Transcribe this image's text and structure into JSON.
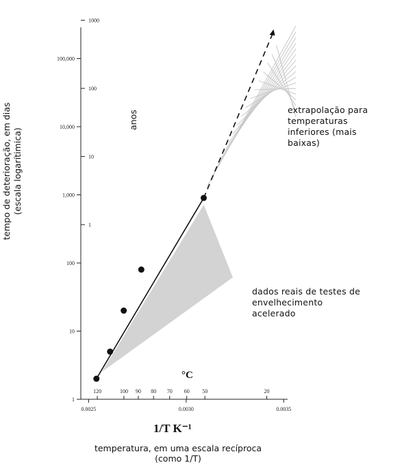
{
  "chart_data": {
    "type": "line",
    "title": "",
    "ylabel_lines": [
      "tempo de deterioração, em dias",
      "(escala  logarítimica)"
    ],
    "xlabel_lines": [
      "temperatura, em uma escala recíproca",
      "(como 1/T)"
    ],
    "xaxis_title": "1/T K⁻¹",
    "y_scale": "log",
    "ylim": [
      1,
      300000
    ],
    "xlim": [
      0.00246,
      0.00352
    ],
    "left_ticks": [
      {
        "value": 1,
        "label": "1"
      },
      {
        "value": 10,
        "label": "10"
      },
      {
        "value": 100,
        "label": "100"
      },
      {
        "value": 1000,
        "label": "1,000"
      },
      {
        "value": 10000,
        "label": "10,000"
      },
      {
        "value": 100000,
        "label": "100,000"
      }
    ],
    "years_axis_label": "anos",
    "years_ticks": [
      {
        "years": 1,
        "label": "1"
      },
      {
        "years": 10,
        "label": "10"
      },
      {
        "years": 100,
        "label": "100"
      },
      {
        "years": 1000,
        "label": "1000"
      }
    ],
    "bottom_ticks": [
      {
        "value": 0.0025,
        "label": "0.0025"
      },
      {
        "value": 0.003,
        "label": "0.0030"
      },
      {
        "value": 0.0035,
        "label": "0.0035"
      }
    ],
    "celsius_axis_label": "°C",
    "celsius_ticks": [
      {
        "celsius": 120,
        "label": "120"
      },
      {
        "celsius": 100,
        "label": "100"
      },
      {
        "celsius": 90,
        "label": "90"
      },
      {
        "celsius": 80,
        "label": "80"
      },
      {
        "celsius": 70,
        "label": "70"
      },
      {
        "celsius": 60,
        "label": "60"
      },
      {
        "celsius": 50,
        "label": "50"
      },
      {
        "celsius": 20,
        "label": "20"
      }
    ],
    "measured_points": [
      {
        "x": 0.00254,
        "y": 2
      },
      {
        "x": 0.00261,
        "y": 5
      },
      {
        "x": 0.00268,
        "y": 20
      },
      {
        "x": 0.00277,
        "y": 80
      },
      {
        "x": 0.00309,
        "y": 900
      }
    ],
    "extrapolated_end": {
      "x": 0.003448,
      "y": 250000
    },
    "measured_region_note_lines": [
      "dados reais de testes de",
      "envelhecimento",
      "acelerado"
    ],
    "extrapolation_note_lines": [
      "extrapolação para",
      "temperaturas",
      "inferiores  (mais",
      "baixas)"
    ],
    "colors": {
      "line": "#111111",
      "shade": "#d3d3d3",
      "hatch": "#c8c8c8"
    }
  }
}
